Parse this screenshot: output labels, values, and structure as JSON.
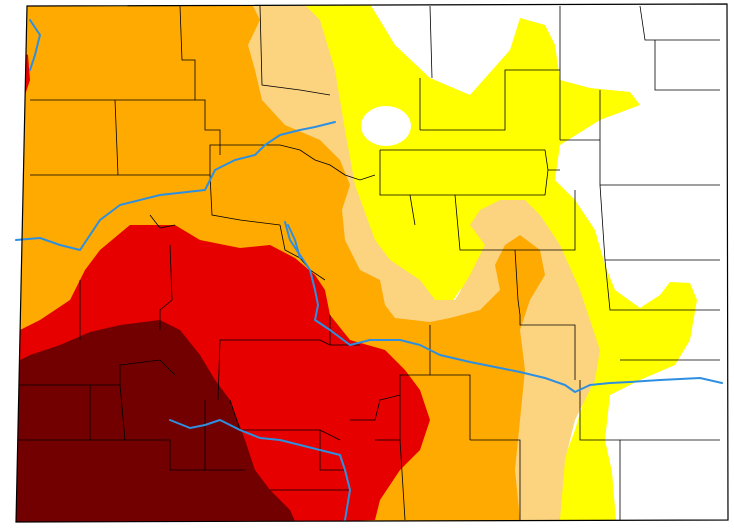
{
  "map": {
    "colors": {
      "none": "#ffffff",
      "d0_abnormally_dry": "#ffff00",
      "d1_moderate": "#fcd37f",
      "d2_severe": "#ffaa00",
      "d3_extreme": "#e60000",
      "d4_exceptional": "#730000",
      "county_lines": "#000000",
      "rivers": "#2e8fe0"
    }
  }
}
